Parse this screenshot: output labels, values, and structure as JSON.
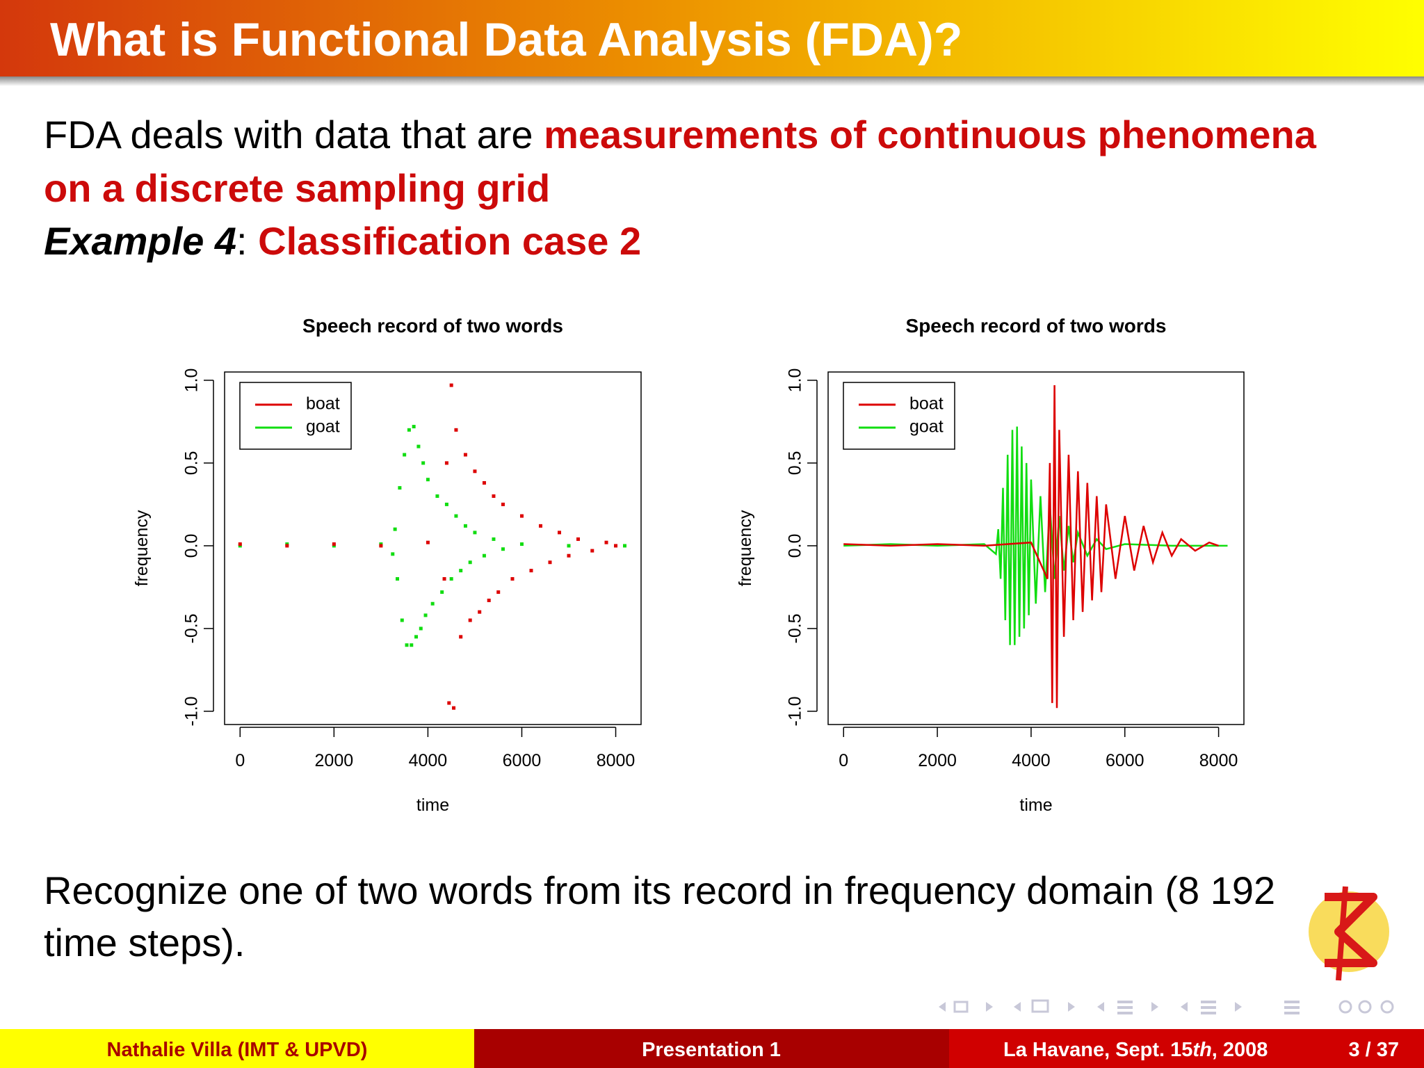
{
  "header": {
    "title": "What is Functional Data Analysis (FDA)?"
  },
  "body": {
    "intro": "FDA deals with data that are ",
    "highlight": [
      "measurements of continuous phenomena",
      "on a discrete sampling grid"
    ],
    "example_label": "Example 4",
    "example_sep": ":",
    "example_title": "Classification case 2",
    "conclusion": [
      "Recognize one of two words from its record in frequency domain (8 192",
      "time steps)."
    ]
  },
  "chart_data": [
    {
      "type": "scatter",
      "title": "Speech record of two words",
      "x_label": "time",
      "y_label": "frequency",
      "xlim": [
        -330,
        8540
      ],
      "ylim": [
        -1.08,
        1.05
      ],
      "xticks": [
        0,
        2000,
        4000,
        6000,
        8000
      ],
      "yticks": [
        {
          "value": -1,
          "label": "-1.0"
        },
        {
          "value": -0.5,
          "label": "-0.5"
        },
        {
          "value": 0,
          "label": "0.0"
        },
        {
          "value": 0.5,
          "label": "0.5"
        },
        {
          "value": 1,
          "label": "1.0"
        }
      ],
      "legend": "top-left",
      "series": [
        {
          "name": "boat",
          "color": "#dd0000",
          "x": [
            0,
            1000,
            2000,
            3000,
            4000,
            4350,
            4400,
            4450,
            4500,
            4550,
            4600,
            4700,
            4800,
            4900,
            5000,
            5100,
            5200,
            5300,
            5400,
            5500,
            5600,
            5800,
            6000,
            6200,
            6400,
            6600,
            6800,
            7000,
            7200,
            7500,
            7800,
            8000
          ],
          "values": [
            0.01,
            0,
            0.01,
            0,
            0.02,
            -0.2,
            0.5,
            -0.95,
            0.97,
            -0.98,
            0.7,
            -0.55,
            0.55,
            -0.45,
            0.45,
            -0.4,
            0.38,
            -0.33,
            0.3,
            -0.28,
            0.25,
            -0.2,
            0.18,
            -0.15,
            0.12,
            -0.1,
            0.08,
            -0.06,
            0.04,
            -0.03,
            0.02,
            0
          ]
        },
        {
          "name": "goat",
          "color": "#11dd11",
          "x": [
            0,
            1000,
            2000,
            3000,
            3250,
            3300,
            3350,
            3400,
            3450,
            3500,
            3550,
            3600,
            3650,
            3700,
            3750,
            3800,
            3850,
            3900,
            3950,
            4000,
            4100,
            4200,
            4300,
            4400,
            4500,
            4600,
            4700,
            4800,
            4900,
            5000,
            5200,
            5400,
            5600,
            6000,
            7000,
            8192
          ],
          "values": [
            0,
            0.01,
            0,
            0.01,
            -0.05,
            0.1,
            -0.2,
            0.35,
            -0.45,
            0.55,
            -0.6,
            0.7,
            -0.6,
            0.72,
            -0.55,
            0.6,
            -0.5,
            0.5,
            -0.42,
            0.4,
            -0.35,
            0.3,
            -0.28,
            0.25,
            -0.2,
            0.18,
            -0.15,
            0.12,
            -0.1,
            0.08,
            -0.06,
            0.04,
            -0.02,
            0.01,
            0,
            0
          ]
        }
      ]
    },
    {
      "type": "line",
      "title": "Speech record of two words",
      "x_label": "time",
      "y_label": "frequency",
      "xlim": [
        -330,
        8540
      ],
      "ylim": [
        -1.08,
        1.05
      ],
      "xticks": [
        0,
        2000,
        4000,
        6000,
        8000
      ],
      "yticks": [
        {
          "value": -1,
          "label": "-1.0"
        },
        {
          "value": -0.5,
          "label": "-0.5"
        },
        {
          "value": 0,
          "label": "0.0"
        },
        {
          "value": 0.5,
          "label": "0.5"
        },
        {
          "value": 1,
          "label": "1.0"
        }
      ],
      "legend": "top-left",
      "series": [
        {
          "name": "boat",
          "color": "#dd0000",
          "x": [
            0,
            1000,
            2000,
            3000,
            4000,
            4350,
            4400,
            4450,
            4500,
            4550,
            4600,
            4700,
            4800,
            4900,
            5000,
            5100,
            5200,
            5300,
            5400,
            5500,
            5600,
            5800,
            6000,
            6200,
            6400,
            6600,
            6800,
            7000,
            7200,
            7500,
            7800,
            8000
          ],
          "values": [
            0.01,
            0,
            0.01,
            0,
            0.02,
            -0.2,
            0.5,
            -0.95,
            0.97,
            -0.98,
            0.7,
            -0.55,
            0.55,
            -0.45,
            0.45,
            -0.4,
            0.38,
            -0.33,
            0.3,
            -0.28,
            0.25,
            -0.2,
            0.18,
            -0.15,
            0.12,
            -0.1,
            0.08,
            -0.06,
            0.04,
            -0.03,
            0.02,
            0
          ]
        },
        {
          "name": "goat",
          "color": "#11dd11",
          "x": [
            0,
            1000,
            2000,
            3000,
            3250,
            3300,
            3350,
            3400,
            3450,
            3500,
            3550,
            3600,
            3650,
            3700,
            3750,
            3800,
            3850,
            3900,
            3950,
            4000,
            4100,
            4200,
            4300,
            4400,
            4500,
            4600,
            4700,
            4800,
            4900,
            5000,
            5200,
            5400,
            5600,
            6000,
            7000,
            8192
          ],
          "values": [
            0,
            0.01,
            0,
            0.01,
            -0.05,
            0.1,
            -0.2,
            0.35,
            -0.45,
            0.55,
            -0.6,
            0.7,
            -0.6,
            0.72,
            -0.55,
            0.6,
            -0.5,
            0.5,
            -0.42,
            0.4,
            -0.35,
            0.3,
            -0.28,
            0.25,
            -0.2,
            0.18,
            -0.15,
            0.12,
            -0.1,
            0.08,
            -0.06,
            0.04,
            -0.02,
            0.01,
            0,
            0
          ]
        }
      ]
    }
  ],
  "footer": {
    "author": "Nathalie Villa (IMT & UPVD)",
    "title": "Presentation 1",
    "place_date": [
      "La Havane, Sept. 15",
      "th",
      ", 2008"
    ],
    "page": "3 / 37"
  }
}
